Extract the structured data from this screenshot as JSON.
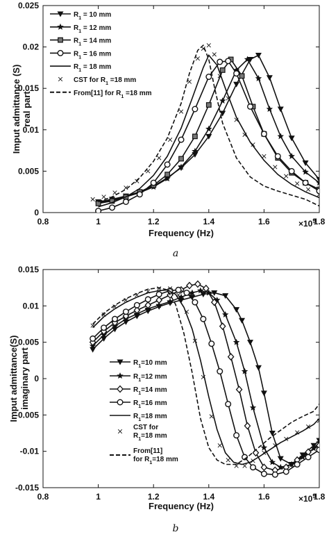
{
  "chart_data": [
    {
      "type": "line",
      "caption": "a",
      "xlabel": "Frequency (Hz)",
      "ylabel": [
        "Imput admittance (S)",
        "real part"
      ],
      "xmult": "×10",
      "xmult_exp": "9",
      "xlim": [
        0.8,
        1.8
      ],
      "ylim": [
        0,
        0.025
      ],
      "xticks": [
        "0.8",
        "1",
        "1.2",
        "1.4",
        "1.6",
        "1.8"
      ],
      "xtick_values": [
        0.8,
        1.0,
        1.2,
        1.4,
        1.6,
        1.8
      ],
      "yticks": [
        "0",
        "0.005",
        "0.01",
        "0.015",
        "0.02",
        "0.025"
      ],
      "ytick_values": [
        0,
        0.005,
        0.01,
        0.015,
        0.02,
        0.025
      ],
      "legend_position": "top-left",
      "series": [
        {
          "label": "R",
          "sub": "1",
          "tail": " = 10 mm",
          "marker": "triangle-down",
          "style": "solid",
          "x": [
            1.0,
            1.05,
            1.1,
            1.15,
            1.2,
            1.25,
            1.3,
            1.35,
            1.4,
            1.45,
            1.5,
            1.55,
            1.58,
            1.62,
            1.66,
            1.7,
            1.75,
            1.8
          ],
          "y": [
            0.0013,
            0.0016,
            0.002,
            0.0025,
            0.0032,
            0.0042,
            0.0054,
            0.007,
            0.0092,
            0.012,
            0.0155,
            0.0185,
            0.019,
            0.0163,
            0.0125,
            0.009,
            0.006,
            0.004
          ]
        },
        {
          "label": "R",
          "sub": "1",
          "tail": " = 12 mm",
          "marker": "star",
          "style": "solid",
          "x": [
            1.0,
            1.05,
            1.1,
            1.15,
            1.2,
            1.25,
            1.3,
            1.35,
            1.4,
            1.45,
            1.5,
            1.54,
            1.58,
            1.62,
            1.66,
            1.7,
            1.75,
            1.8
          ],
          "y": [
            0.0012,
            0.0015,
            0.0019,
            0.0024,
            0.0031,
            0.0041,
            0.0055,
            0.0074,
            0.0101,
            0.0135,
            0.0172,
            0.0185,
            0.0162,
            0.0125,
            0.0092,
            0.0068,
            0.0049,
            0.0036
          ]
        },
        {
          "label": "R",
          "sub": "1",
          "tail": " = 14 mm",
          "marker": "square",
          "style": "solid",
          "x": [
            1.0,
            1.05,
            1.1,
            1.15,
            1.2,
            1.25,
            1.3,
            1.35,
            1.4,
            1.45,
            1.48,
            1.52,
            1.56,
            1.6,
            1.65,
            1.7,
            1.75,
            1.8
          ],
          "y": [
            0.0011,
            0.0014,
            0.0019,
            0.0025,
            0.0033,
            0.0046,
            0.0065,
            0.0092,
            0.013,
            0.0172,
            0.0185,
            0.0165,
            0.0128,
            0.0095,
            0.0066,
            0.0048,
            0.0036,
            0.0028
          ]
        },
        {
          "label": "R",
          "sub": "1",
          "tail": " = 16 mm",
          "marker": "circle",
          "style": "solid",
          "x": [
            1.0,
            1.05,
            1.1,
            1.15,
            1.2,
            1.25,
            1.3,
            1.35,
            1.4,
            1.44,
            1.47,
            1.5,
            1.55,
            1.6,
            1.65,
            1.7,
            1.75,
            1.8
          ],
          "y": [
            0.0002,
            0.0006,
            0.0013,
            0.0022,
            0.0036,
            0.0058,
            0.0088,
            0.0125,
            0.0164,
            0.0182,
            0.0183,
            0.0168,
            0.0128,
            0.0095,
            0.0068,
            0.005,
            0.0036,
            0.0026
          ]
        },
        {
          "label": "R",
          "sub": "1",
          "tail": " = 18 mm",
          "marker": "none",
          "style": "solid",
          "x": [
            1.0,
            1.05,
            1.1,
            1.15,
            1.2,
            1.25,
            1.3,
            1.34,
            1.38,
            1.4,
            1.43,
            1.46,
            1.5,
            1.55,
            1.6,
            1.65,
            1.7,
            1.75,
            1.8
          ],
          "y": [
            0.0007,
            0.0012,
            0.0019,
            0.0029,
            0.0045,
            0.0068,
            0.0102,
            0.0138,
            0.0175,
            0.019,
            0.0178,
            0.015,
            0.0115,
            0.0085,
            0.0063,
            0.0046,
            0.0034,
            0.0025,
            0.0018
          ]
        },
        {
          "label": "CST for R",
          "sub": "1",
          "tail": " =18 mm",
          "marker": "x",
          "style": "none",
          "x": [
            0.98,
            1.02,
            1.06,
            1.1,
            1.14,
            1.18,
            1.22,
            1.26,
            1.3,
            1.33,
            1.36,
            1.38,
            1.4,
            1.42,
            1.44,
            1.47,
            1.5,
            1.53,
            1.56,
            1.6,
            1.64,
            1.68,
            1.72,
            1.76,
            1.8
          ],
          "y": [
            0.0016,
            0.0019,
            0.0024,
            0.003,
            0.0038,
            0.005,
            0.0066,
            0.0088,
            0.0122,
            0.0158,
            0.0186,
            0.0198,
            0.0202,
            0.0191,
            0.0165,
            0.0138,
            0.0112,
            0.0094,
            0.0082,
            0.0068,
            0.0055,
            0.0044,
            0.0035,
            0.0028,
            0.0022
          ]
        },
        {
          "label": "From[11] for R",
          "sub": "1",
          "tail": " =18 mm",
          "marker": "none",
          "style": "dashed",
          "x": [
            1.0,
            1.05,
            1.1,
            1.15,
            1.2,
            1.25,
            1.3,
            1.33,
            1.36,
            1.38,
            1.4,
            1.42,
            1.45,
            1.5,
            1.55,
            1.6,
            1.65,
            1.7,
            1.75,
            1.8
          ],
          "y": [
            0.0013,
            0.0019,
            0.0028,
            0.0042,
            0.0062,
            0.009,
            0.0132,
            0.0168,
            0.0196,
            0.0202,
            0.0185,
            0.0152,
            0.0108,
            0.0066,
            0.0043,
            0.0032,
            0.0026,
            0.0021,
            0.0016,
            0.0008
          ]
        }
      ]
    },
    {
      "type": "line",
      "caption": "b",
      "xlabel": "Frequency (Hz)",
      "ylabel": [
        "Imput admittance(S)",
        "imaginary part"
      ],
      "xmult": "×10",
      "xmult_exp": "9",
      "xlim": [
        0.8,
        1.8
      ],
      "ylim": [
        -0.015,
        0.015
      ],
      "xticks": [
        "0.8",
        "1",
        "1.2",
        "1.4",
        "1.6",
        "1.8"
      ],
      "xtick_values": [
        0.8,
        1.0,
        1.2,
        1.4,
        1.6,
        1.8
      ],
      "yticks": [
        "-0.015",
        "-0.01",
        "-0.005",
        "0",
        "0.005",
        "0.01",
        "0.015"
      ],
      "ytick_values": [
        -0.015,
        -0.01,
        -0.005,
        0,
        0.005,
        0.01,
        0.015
      ],
      "legend_position": "center-left",
      "series": [
        {
          "label": "R",
          "sub": "1",
          "tail": "=10 mm",
          "marker": "triangle-down",
          "style": "solid",
          "x": [
            0.98,
            1.02,
            1.06,
            1.1,
            1.14,
            1.18,
            1.22,
            1.26,
            1.3,
            1.34,
            1.38,
            1.42,
            1.46,
            1.5,
            1.52,
            1.55,
            1.58,
            1.6,
            1.63,
            1.66,
            1.7,
            1.74,
            1.78,
            1.8
          ],
          "y": [
            0.004,
            0.0055,
            0.0068,
            0.0078,
            0.0086,
            0.0093,
            0.0099,
            0.0104,
            0.0108,
            0.0112,
            0.0116,
            0.0118,
            0.0114,
            0.0095,
            0.008,
            0.005,
            0.0015,
            -0.002,
            -0.0075,
            -0.011,
            -0.0118,
            -0.0105,
            -0.0092,
            -0.0085
          ]
        },
        {
          "label": "R",
          "sub": "1",
          "tail": "=12 mm",
          "marker": "star",
          "style": "solid",
          "x": [
            0.98,
            1.02,
            1.06,
            1.1,
            1.14,
            1.18,
            1.22,
            1.26,
            1.3,
            1.34,
            1.37,
            1.4,
            1.43,
            1.46,
            1.5,
            1.53,
            1.56,
            1.6,
            1.63,
            1.66,
            1.7,
            1.74,
            1.78,
            1.8
          ],
          "y": [
            0.0045,
            0.006,
            0.0072,
            0.0082,
            0.0089,
            0.0096,
            0.0101,
            0.0106,
            0.0112,
            0.0118,
            0.0121,
            0.0118,
            0.0108,
            0.0088,
            0.005,
            0.001,
            -0.004,
            -0.0095,
            -0.0115,
            -0.0122,
            -0.0118,
            -0.0108,
            -0.0096,
            -0.0088
          ]
        },
        {
          "label": "R",
          "sub": "1",
          "tail": "=14 mm",
          "marker": "diamond",
          "style": "solid",
          "x": [
            0.98,
            1.02,
            1.06,
            1.1,
            1.14,
            1.18,
            1.22,
            1.26,
            1.3,
            1.33,
            1.36,
            1.39,
            1.42,
            1.45,
            1.48,
            1.51,
            1.54,
            1.57,
            1.6,
            1.64,
            1.68,
            1.72,
            1.76,
            1.8
          ],
          "y": [
            0.005,
            0.0065,
            0.0077,
            0.0086,
            0.0094,
            0.0101,
            0.0108,
            0.0115,
            0.0122,
            0.0128,
            0.013,
            0.0124,
            0.0105,
            0.0072,
            0.003,
            -0.0015,
            -0.0065,
            -0.0102,
            -0.0122,
            -0.0126,
            -0.0122,
            -0.0112,
            -0.0101,
            -0.0092
          ]
        },
        {
          "label": "R",
          "sub": "1",
          "tail": "=16 mm",
          "marker": "circle",
          "style": "solid",
          "x": [
            0.98,
            1.02,
            1.06,
            1.1,
            1.14,
            1.18,
            1.22,
            1.26,
            1.29,
            1.32,
            1.35,
            1.38,
            1.41,
            1.44,
            1.47,
            1.5,
            1.53,
            1.56,
            1.6,
            1.64,
            1.68,
            1.72,
            1.76,
            1.8
          ],
          "y": [
            0.0055,
            0.007,
            0.0082,
            0.0092,
            0.0101,
            0.0109,
            0.0116,
            0.0121,
            0.0122,
            0.0118,
            0.0105,
            0.0082,
            0.0048,
            0.001,
            -0.0035,
            -0.0078,
            -0.0108,
            -0.0122,
            -0.0131,
            -0.0132,
            -0.0128,
            -0.0118,
            -0.0108,
            -0.0098
          ]
        },
        {
          "label": "R",
          "sub": "1",
          "tail": "=18 mm",
          "marker": "none",
          "style": "solid",
          "x": [
            0.98,
            1.02,
            1.06,
            1.1,
            1.14,
            1.18,
            1.22,
            1.25,
            1.28,
            1.31,
            1.34,
            1.37,
            1.4,
            1.43,
            1.46,
            1.49,
            1.52,
            1.55,
            1.58,
            1.62,
            1.66,
            1.7,
            1.74,
            1.78,
            1.8
          ],
          "y": [
            0.007,
            0.0085,
            0.0096,
            0.0105,
            0.0112,
            0.0118,
            0.0121,
            0.0122,
            0.0116,
            0.0098,
            0.0068,
            0.0025,
            -0.0025,
            -0.007,
            -0.0102,
            -0.0115,
            -0.0118,
            -0.0115,
            -0.0108,
            -0.0098,
            -0.0088,
            -0.008,
            -0.0072,
            -0.0063,
            -0.0055
          ]
        },
        {
          "label": "CST for",
          "line2": "R",
          "sub": "1",
          "tail": "=18 mm",
          "marker": "x",
          "style": "none",
          "x": [
            0.98,
            1.02,
            1.06,
            1.1,
            1.14,
            1.18,
            1.22,
            1.26,
            1.29,
            1.32,
            1.35,
            1.38,
            1.41,
            1.44,
            1.47,
            1.5,
            1.53,
            1.56,
            1.6,
            1.64,
            1.68,
            1.72,
            1.76,
            1.8
          ],
          "y": [
            0.0073,
            0.0088,
            0.0099,
            0.0108,
            0.0115,
            0.012,
            0.0124,
            0.0124,
            0.0115,
            0.0092,
            0.0052,
            0.0002,
            -0.0052,
            -0.0092,
            -0.0112,
            -0.012,
            -0.012,
            -0.0113,
            -0.0102,
            -0.0092,
            -0.0083,
            -0.0074,
            -0.0066,
            -0.0058
          ]
        },
        {
          "label": "From[11]",
          "line2": "for R",
          "sub": "1",
          "tail": "=18 mm",
          "marker": "none",
          "style": "dashed",
          "x": [
            0.98,
            1.02,
            1.06,
            1.1,
            1.14,
            1.18,
            1.22,
            1.25,
            1.28,
            1.31,
            1.34,
            1.37,
            1.4,
            1.43,
            1.46,
            1.5,
            1.54,
            1.58,
            1.62,
            1.66,
            1.7,
            1.74,
            1.78,
            1.8
          ],
          "y": [
            0.0075,
            0.009,
            0.0101,
            0.011,
            0.0117,
            0.0123,
            0.0125,
            0.0122,
            0.0102,
            0.0062,
            0.0008,
            -0.0055,
            -0.0095,
            -0.0112,
            -0.0118,
            -0.0118,
            -0.0108,
            -0.0095,
            -0.0082,
            -0.0071,
            -0.006,
            -0.0052,
            -0.0045,
            -0.0035
          ]
        }
      ]
    }
  ]
}
